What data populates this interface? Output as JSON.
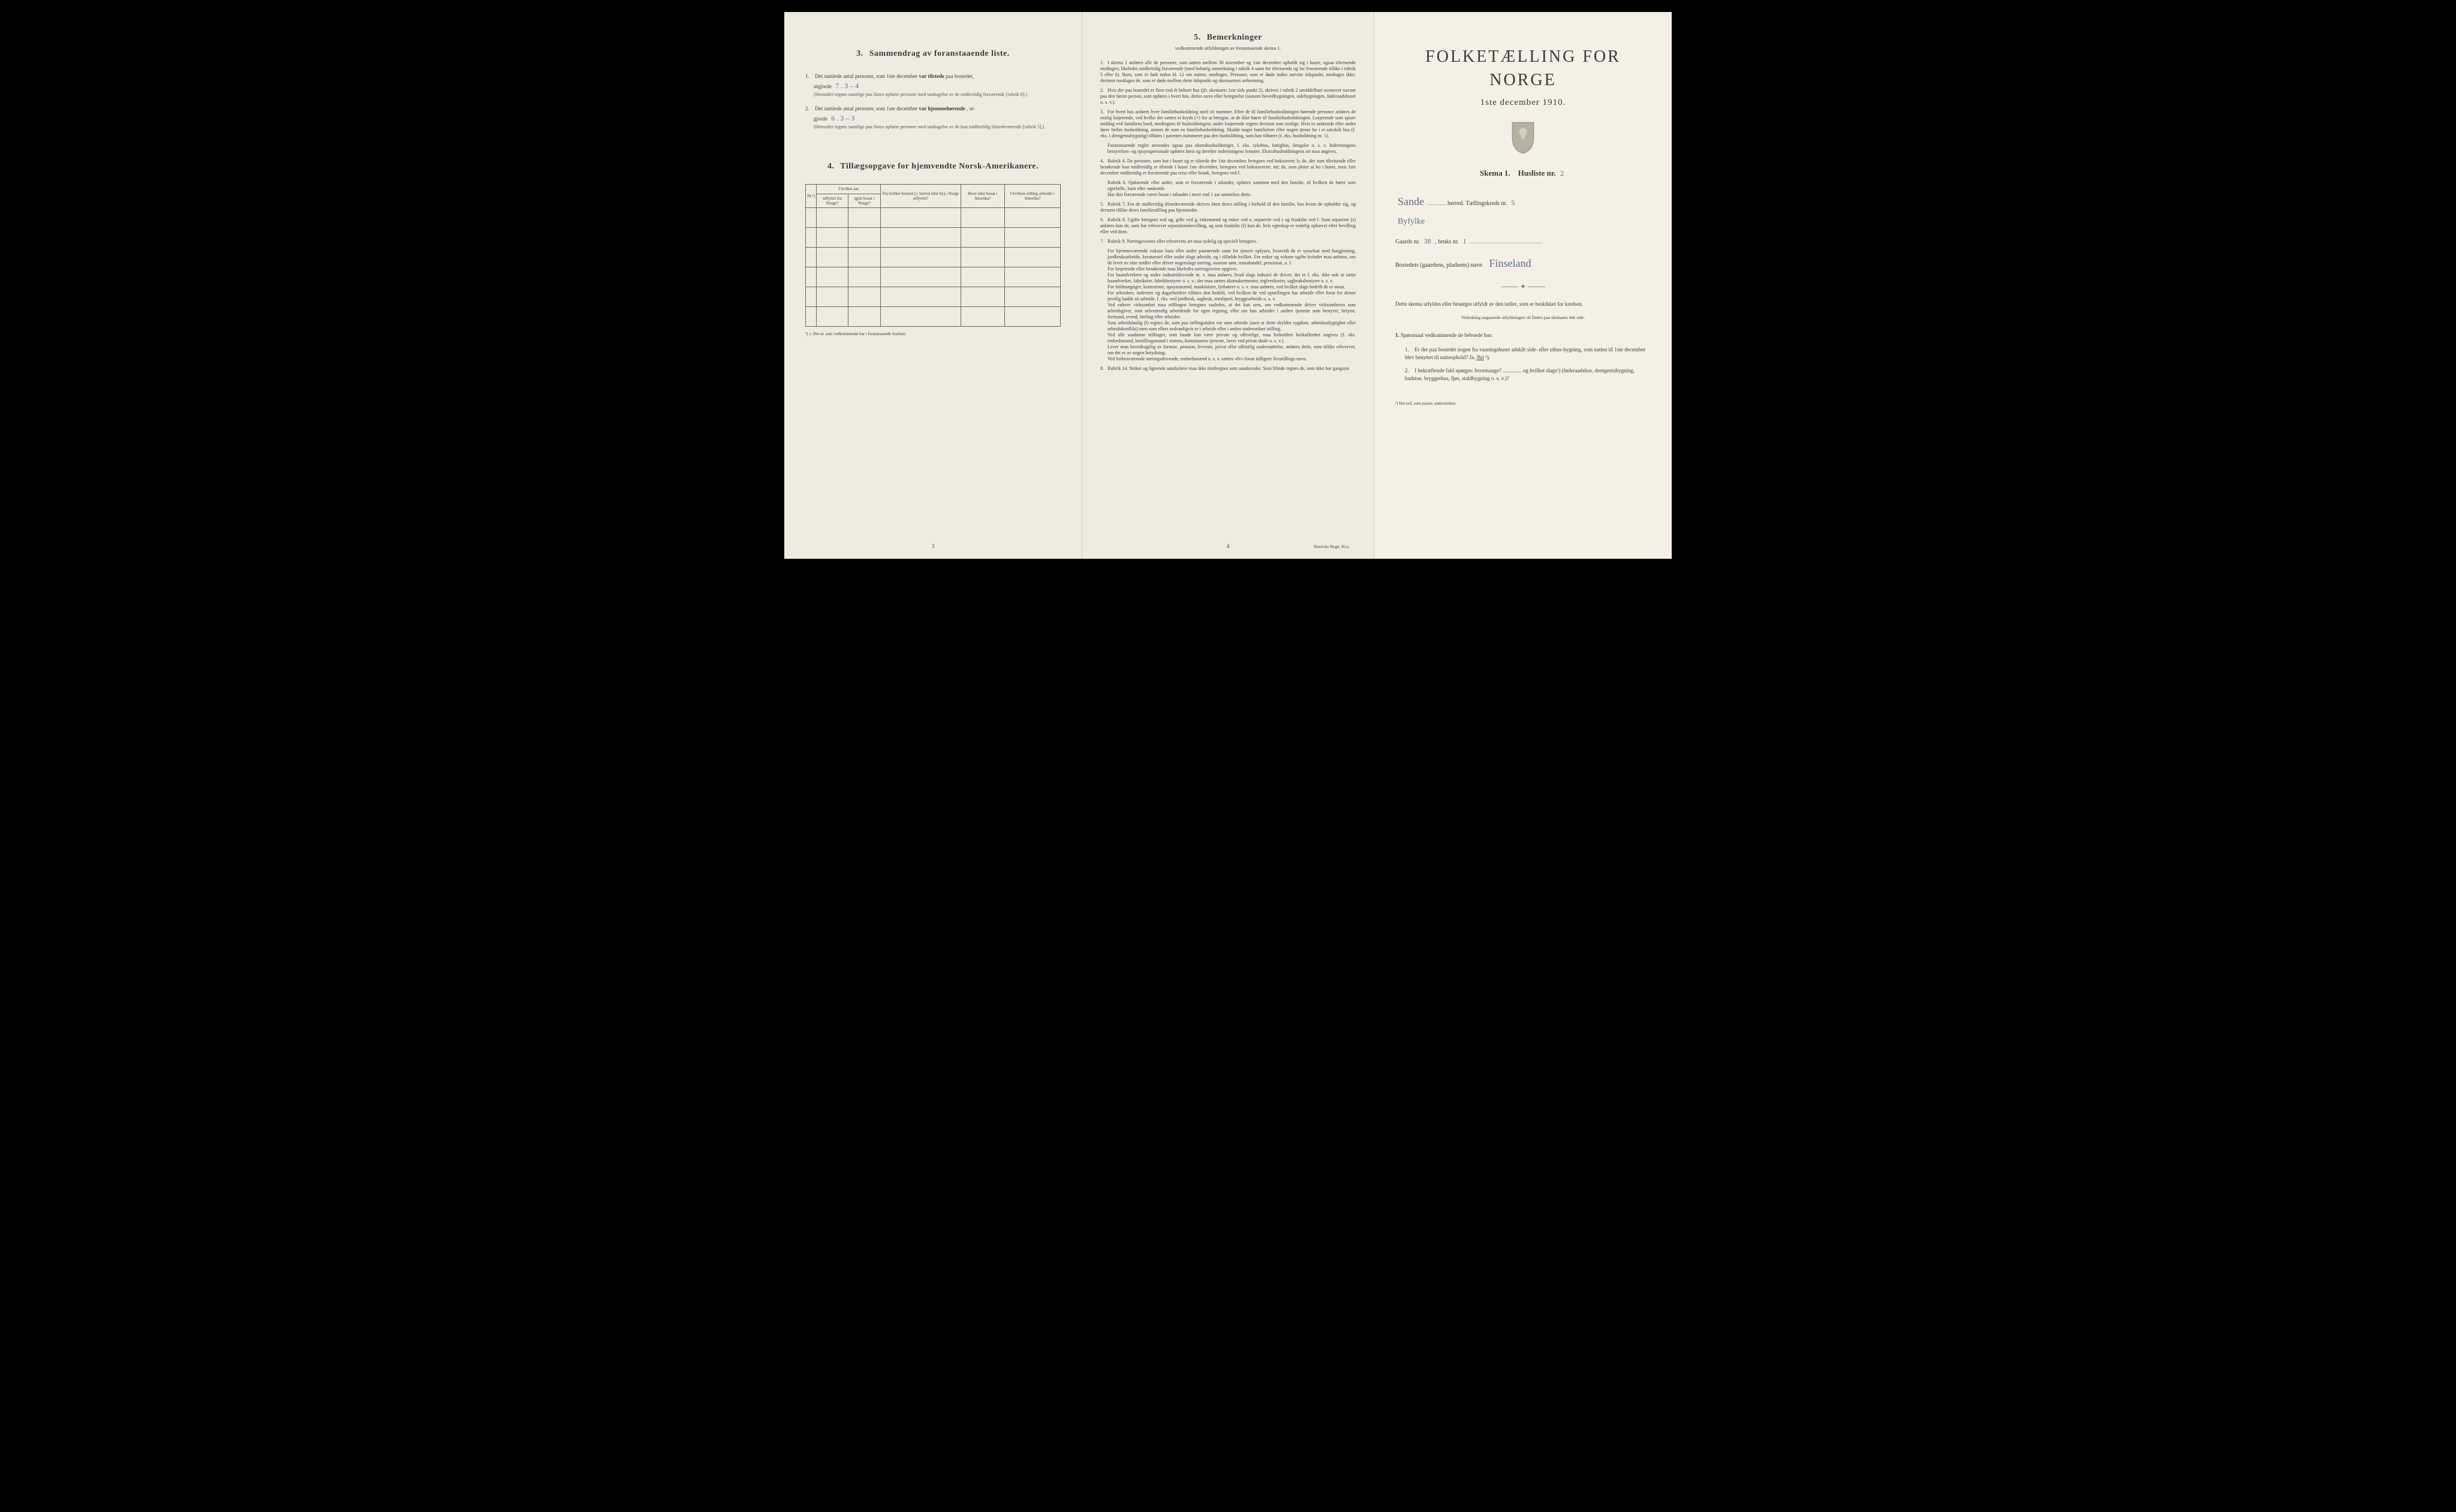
{
  "left": {
    "section3": {
      "num": "3.",
      "title": "Sammendrag av foranstaaende liste.",
      "item1": {
        "n": "1.",
        "text_a": "Det samlede antal personer, som 1ste december ",
        "bold": "var tilstede",
        "text_b": " paa bostedet,",
        "text_c": "utgjorde ",
        "hand": "7 . 3 – 4",
        "paren": "(Herunder regnes samtlige paa listen opførte personer med undtagelse av de midlertidig fraværende [rubrik 6].)"
      },
      "item2": {
        "n": "2.",
        "text_a": "Det samlede antal personer, som 1ste december ",
        "bold": "var hjemmehørende",
        "text_b": ", ut-",
        "text_c": "gjorde ",
        "hand": "6 . 3 – 3",
        "paren": "(Herunder regnes samtlige paa listen opførte personer med undtagelse av de kun midlertidig tilstedeværende [rubrik 5].)"
      }
    },
    "section4": {
      "num": "4.",
      "title": "Tillægsopgave for hjemvendte Norsk-Amerikanere.",
      "headers": {
        "c0": "Nr.¹)",
        "c1_top": "I hvilket aar",
        "c1a": "utflyttet fra Norge?",
        "c1b": "igjen bosat i Norge?",
        "c2": "Fra hvilket bosted (ɔ: herred eller by) i Norge utflyttet?",
        "c3": "Hvor sidst bosat i Amerika?",
        "c4": "I hvilken stilling arbeidet i Amerika?"
      },
      "footnote": "¹) ɔ: Det nr. som vedkommende har i foranstaaende husliste."
    },
    "pgnum": "3"
  },
  "middle": {
    "heading_num": "5.",
    "heading": "Bemerkninger",
    "sub": "vedkommende utfyldningen av foranstaaende skema 1.",
    "paras": [
      {
        "n": "1.",
        "t": "I skema 1 anføres alle de personer, som natten mellem 30 november og 1ste december opholdt sig i huset; ogsaa tilreisende medtages; likeledes midlertidig fraværende (med behørig anmerkning i rubrik 4 samt for tilreisende og for fraværende tillike i rubrik 5 eller 6). Barn, som er født inden kl. 12 om natten, medtages. Personer, som er døde inden nævnte tidspunkt, medtages ikke; derimot medtages de, som er døde mellem dette tidspunkt og skemaernes avhentning."
      },
      {
        "n": "2.",
        "t": "Hvis der paa bostedet er flere end ét beboet hus (jfr. skemaets 1ste side punkt 2), skrives i rubrik 2 umiddelbart ovenover navnet paa den første person, som opføres i hvert hus, dettes navn eller betegnelse (saasom hovedbygningen, sidebygningen, føderaadshuset o. s. v.)."
      },
      {
        "n": "3.",
        "t": "For hvert hus anføres hver familiehusholdning med sit nummer. Efter de til familiehusholdningen hørende personer anføres de enslig losjerende, ved hvilke der sættes et kryds (×) for at betegne, at de ikke hører til familiehusholdningen. Losjerende som spiser middag ved familiens bord, medregnes til husholdningen; andre losjerende regnes derimot som enslige. Hvis to søskende eller andre fører fælles husholdning, ansees de som en familiehusholdning. Skulde noget familielem eller nogen tjener bo i et særskilt hus (f. eks. i drengestubygning) tilføies i parentes nummeret paa den husholdning, som han tilhører (f. eks. husholdning nr. 1)."
      },
      {
        "n": "",
        "t": "Foranstaaende regler anvendes ogsaa paa ekstrahusholdninger, f. eks. sykehus, fattighus, fængsler o. s. v. Indretningens bestyrelses- og opsynspersonale opføres først og derefter indretningens lemmer. Ekstrahusholdningens art maa angives."
      },
      {
        "n": "4.",
        "t": "Rubrik 4. De personer, som bor i huset og er tilstede der 1ste december, betegnes ved bokstaven: b; de, der som tilreisende eller besøkende kun midlertidig er tilstede i huset 1ste december, betegnes ved bokstaverne: mt; de, som pleier at bo i huset, men 1ste december midlertidig er fraværende paa reise eller besøk, betegnes ved f."
      },
      {
        "n": "",
        "t": "Rubrik 6. Sjøfarende eller andre, som er fraværende i utlandet, opføres sammen med den familie, til hvilken de hører som egtefælle, barn eller søskende."
      },
      {
        "n": "",
        "t": "Har den fraværende været bosat i utlandet i mere end 1 aar anmerkes dette."
      },
      {
        "n": "5.",
        "t": "Rubrik 7. For de midlertidig tilstedeværende skrives først deres stilling i forhold til den familie, hos hvem de opholder sig, og dernæst tillike deres familiestilling paa hjemstedet."
      },
      {
        "n": "6.",
        "t": "Rubrik 8. Ugifte betegnes ved ug, gifte ved g, enkemænd og enker ved e, separerte ved s og fraskilte ved f. Som separerte (s) anføres kun de, som har erhvervet separationsbevilling, og som fraskilte (f) kun de, hvis egteskap er endelig ophævet efter bevilling eller ved dom."
      },
      {
        "n": "7.",
        "t": "Rubrik 9. Næringsveiens eller erhvervets art maa tydelig og specielt betegnes."
      },
      {
        "n": "",
        "t": "For hjemmeværende voksne barn eller andre paarørende samt for tjenere oplyses, hvorvidt de er sysselsat med husgjerning, jordbruksarbeide, kreaturstel eller andet slags arbeide, og i tilfælde hvilket. For enker og voksne ugifte kvinder maa anføres, om de lever av sine midler eller driver nogenslags næring, saasom søm, smaahandel, pensionat, o. l."
      },
      {
        "n": "",
        "t": "For losjerende eller besøkende maa likeledes næringsveien opgives."
      },
      {
        "n": "",
        "t": "For haandverkere og andre industridrivende m. v. maa anføres, hvad slags industri de driver; det er f. eks. ikke nok at sætte haandverker, fabrikeier, fabrikbestyrer o. s. v.; der maa sættes skomakermester, teglverkseier, sagbruksbestyrer o. s. v."
      },
      {
        "n": "",
        "t": "For fuldmægtiger, kontorister, opsynsmænd, maskinister, fyrbøtere o. s. v. maa anføres, ved hvilket slags bedrift de er ansat."
      },
      {
        "n": "",
        "t": "For arbeidere, inderster og dagarbeidere tilføies den bedrift, ved hvilken de ved optællingen har arbeide eller forut for denne jevnlig hadde sit arbeide, f. eks. ved jordbruk, sagbruk, træsliperi, bryggearbeide o. s. v."
      },
      {
        "n": "",
        "t": "Ved enhver virksomhet maa stillingen betegnes saaledes, at det kan sees, om vedkommende driver virksomheten som arbeidsgiver, som selvstændig arbeidende for egen regning, eller om han arbeider i andres tjeneste som bestyrer, betjent, formand, svend, lærling eller arbeider."
      },
      {
        "n": "",
        "t": "Som arbeidsløslig (l) regnes de, som paa tællingstiden var uten arbeide (uten at dette skyldes sygdom, arbeidsudygtighet eller arbeidskonflikt) men som ellers sedvanligvis er i arbeide eller i anden underordnet stilling."
      },
      {
        "n": "",
        "t": "Ved alle saadanne stillinger, som baade kan være private og offentlige, maa forholdets beskaffenhet angives (f. eks. embedsmand, bestillingsmand i statens, kommunens tjeneste, lærer ved privat skole o. s. v.)."
      },
      {
        "n": "",
        "t": "Lever man hovedsagelig av formue, pension, livrente, privat eller offentlig understøttelse, anføres dette, men tillike erhvervet, om det er av nogen betydning."
      },
      {
        "n": "",
        "t": "Ved forhenværende næringsdrivende, embedsmænd o. s. v. sættes «fv» foran tidligere livsstillings navn."
      },
      {
        "n": "8.",
        "t": "Rubrik 14. Sinker og lignende aandssløve maa ikke medregnes som aandssvake. Som blinde regnes de, som ikke har gangsyn."
      }
    ],
    "pgnum": "4",
    "imprint": "Steen'ske Bogtr. Kr.a."
  },
  "right": {
    "title": "FOLKETÆLLING FOR NORGE",
    "subtitle": "1ste december 1910.",
    "skema_a": "Skema 1.",
    "skema_b": "Husliste nr.",
    "husliste_hand": "2",
    "line1_hand": "Sande",
    "line1_lbl": "herred.  Tællingskreds nr.",
    "kreds_hand": "5",
    "line1b_hand": "Byfylke",
    "line2_a": "Gaards nr.",
    "gnr_hand": "38",
    "line2_b": ", bruks nr.",
    "bnr_hand": "1",
    "line3_lbl": "Bostedets (gaardens, pladsens) navn",
    "navn_hand": "Finseland",
    "instr1": "Dette skema utfyldes eller besørges utfyldt av den tæller, som er beskikket for kredsen.",
    "instr2": "Veiledning angaaende utfyldningen vil findes paa skemaets 4de side.",
    "q_head_num": "1.",
    "q_head": "Spørsmaal vedkommende de beboede hus:",
    "q1": {
      "n": "1.",
      "t": "Er der paa bostedet nogen fra vaaningshuset adskilt side- eller uthus-bygning, som natten til 1ste december blev benyttet til natteophold?   Ja.  ",
      "nei": "Nei",
      "sup": "¹)."
    },
    "q2": {
      "n": "2.",
      "t": "I bekræftende fald spørges: hvormange? .............. og hvilket slags¹) (føderaadshus, drengestubygning, badstue, bryggerhus, fjøs, staldbygning o. s. v.)?"
    },
    "botnote": "¹) Det ord, som passer, understrekes."
  }
}
